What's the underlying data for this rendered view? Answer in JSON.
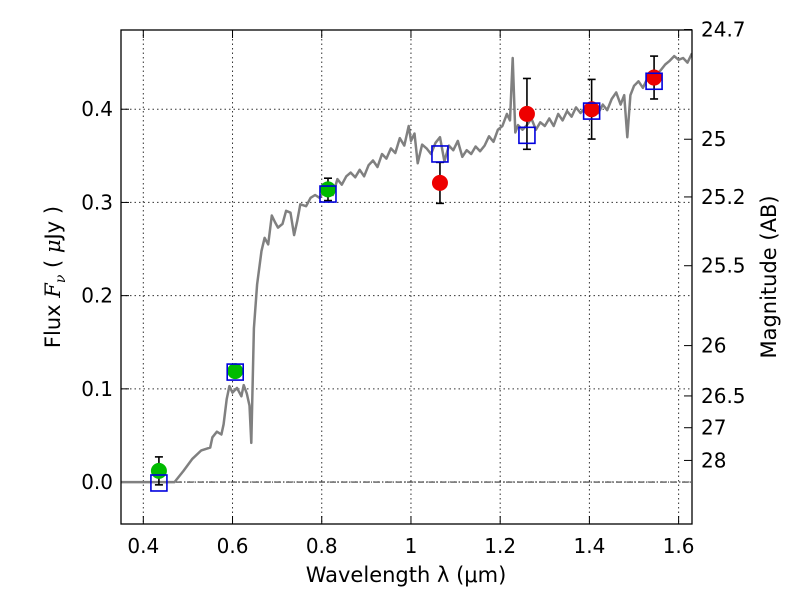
{
  "chart_data": {
    "type": "scatter",
    "xlabel": "Wavelength  λ (μm)",
    "ylabel": "Flux  F_ν  ( μJy )",
    "ylabel_right": "Magnitude (AB)",
    "xlim": [
      0.35,
      1.63
    ],
    "ylim": [
      -0.045,
      0.485
    ],
    "grid": true,
    "x_ticks": [
      0.4,
      0.6,
      0.8,
      1.0,
      1.2,
      1.4,
      1.6
    ],
    "x_tick_labels": [
      "0.4",
      "0.6",
      "0.8",
      "1",
      "1.2",
      "1.4",
      "1.6"
    ],
    "y_ticks": [
      0.0,
      0.1,
      0.2,
      0.3,
      0.4
    ],
    "y_tick_labels": [
      "0.0",
      "0.1",
      "0.2",
      "0.3",
      "0.4"
    ],
    "right_ticks": [
      {
        "label": "24.7",
        "flux": 0.4855
      },
      {
        "label": "25",
        "flux": 0.3678
      },
      {
        "label": "25.2",
        "flux": 0.3059
      },
      {
        "label": "25.5",
        "flux": 0.2321
      },
      {
        "label": "26",
        "flux": 0.1464
      },
      {
        "label": "26.5",
        "flux": 0.0924
      },
      {
        "label": "27",
        "flux": 0.0583
      },
      {
        "label": "28",
        "flux": 0.0232
      }
    ],
    "colors": {
      "model": "#808080",
      "optical_points": "#00bb00",
      "nir_points": "#ee0000",
      "model_boxes": "#0000dd",
      "errorbars": "#000000"
    },
    "series": [
      {
        "kind": "line",
        "points": [
          [
            0.35,
            0.0
          ],
          [
            0.47,
            0.0
          ],
          [
            0.49,
            0.012
          ],
          [
            0.51,
            0.025
          ],
          [
            0.53,
            0.034
          ],
          [
            0.55,
            0.037
          ],
          [
            0.555,
            0.048
          ],
          [
            0.565,
            0.054
          ],
          [
            0.575,
            0.051
          ],
          [
            0.58,
            0.062
          ],
          [
            0.587,
            0.089
          ],
          [
            0.593,
            0.103
          ],
          [
            0.6,
            0.096
          ],
          [
            0.61,
            0.101
          ],
          [
            0.62,
            0.092
          ],
          [
            0.625,
            0.104
          ],
          [
            0.632,
            0.095
          ],
          [
            0.638,
            0.082
          ],
          [
            0.642,
            0.042
          ],
          [
            0.648,
            0.165
          ],
          [
            0.655,
            0.212
          ],
          [
            0.665,
            0.248
          ],
          [
            0.672,
            0.262
          ],
          [
            0.68,
            0.255
          ],
          [
            0.688,
            0.286
          ],
          [
            0.695,
            0.279
          ],
          [
            0.702,
            0.273
          ],
          [
            0.712,
            0.277
          ],
          [
            0.72,
            0.291
          ],
          [
            0.73,
            0.289
          ],
          [
            0.738,
            0.265
          ],
          [
            0.745,
            0.28
          ],
          [
            0.752,
            0.298
          ],
          [
            0.765,
            0.296
          ],
          [
            0.775,
            0.305
          ],
          [
            0.785,
            0.308
          ],
          [
            0.795,
            0.305
          ],
          [
            0.805,
            0.312
          ],
          [
            0.815,
            0.318
          ],
          [
            0.825,
            0.308
          ],
          [
            0.835,
            0.325
          ],
          [
            0.845,
            0.319
          ],
          [
            0.855,
            0.328
          ],
          [
            0.865,
            0.332
          ],
          [
            0.875,
            0.327
          ],
          [
            0.885,
            0.335
          ],
          [
            0.895,
            0.328
          ],
          [
            0.905,
            0.34
          ],
          [
            0.915,
            0.345
          ],
          [
            0.925,
            0.338
          ],
          [
            0.935,
            0.352
          ],
          [
            0.945,
            0.347
          ],
          [
            0.955,
            0.358
          ],
          [
            0.965,
            0.353
          ],
          [
            0.975,
            0.369
          ],
          [
            0.985,
            0.361
          ],
          [
            0.995,
            0.382
          ],
          [
            1.0,
            0.366
          ],
          [
            1.008,
            0.374
          ],
          [
            1.015,
            0.342
          ],
          [
            1.025,
            0.362
          ],
          [
            1.035,
            0.358
          ],
          [
            1.045,
            0.352
          ],
          [
            1.055,
            0.364
          ],
          [
            1.065,
            0.37
          ],
          [
            1.075,
            0.344
          ],
          [
            1.085,
            0.361
          ],
          [
            1.095,
            0.356
          ],
          [
            1.105,
            0.366
          ],
          [
            1.115,
            0.349
          ],
          [
            1.125,
            0.356
          ],
          [
            1.135,
            0.352
          ],
          [
            1.145,
            0.36
          ],
          [
            1.155,
            0.355
          ],
          [
            1.165,
            0.361
          ],
          [
            1.175,
            0.371
          ],
          [
            1.185,
            0.365
          ],
          [
            1.195,
            0.378
          ],
          [
            1.205,
            0.382
          ],
          [
            1.215,
            0.395
          ],
          [
            1.222,
            0.388
          ],
          [
            1.228,
            0.455
          ],
          [
            1.234,
            0.375
          ],
          [
            1.24,
            0.383
          ],
          [
            1.25,
            0.378
          ],
          [
            1.26,
            0.383
          ],
          [
            1.27,
            0.39
          ],
          [
            1.28,
            0.378
          ],
          [
            1.29,
            0.386
          ],
          [
            1.3,
            0.382
          ],
          [
            1.31,
            0.39
          ],
          [
            1.32,
            0.382
          ],
          [
            1.33,
            0.395
          ],
          [
            1.34,
            0.388
          ],
          [
            1.35,
            0.398
          ],
          [
            1.36,
            0.392
          ],
          [
            1.37,
            0.402
          ],
          [
            1.38,
            0.396
          ],
          [
            1.39,
            0.401
          ],
          [
            1.4,
            0.394
          ],
          [
            1.41,
            0.403
          ],
          [
            1.42,
            0.396
          ],
          [
            1.43,
            0.405
          ],
          [
            1.44,
            0.399
          ],
          [
            1.45,
            0.411
          ],
          [
            1.46,
            0.418
          ],
          [
            1.47,
            0.405
          ],
          [
            1.478,
            0.415
          ],
          [
            1.485,
            0.37
          ],
          [
            1.492,
            0.415
          ],
          [
            1.5,
            0.425
          ],
          [
            1.51,
            0.43
          ],
          [
            1.52,
            0.423
          ],
          [
            1.53,
            0.433
          ],
          [
            1.54,
            0.428
          ],
          [
            1.55,
            0.437
          ],
          [
            1.56,
            0.442
          ],
          [
            1.57,
            0.448
          ],
          [
            1.58,
            0.452
          ],
          [
            1.59,
            0.457
          ],
          [
            1.6,
            0.453
          ],
          [
            1.61,
            0.455
          ],
          [
            1.62,
            0.45
          ],
          [
            1.63,
            0.46
          ]
        ]
      },
      {
        "kind": "points",
        "points": [
          {
            "x": 0.435,
            "y": 0.012,
            "yerr": 0.015
          },
          {
            "x": 0.606,
            "y": 0.119,
            "yerr": 0.0
          },
          {
            "x": 0.814,
            "y": 0.314,
            "yerr": 0.012
          }
        ]
      },
      {
        "kind": "points",
        "points": [
          {
            "x": 1.065,
            "y": 0.321,
            "yerr": 0.022
          },
          {
            "x": 1.26,
            "y": 0.395,
            "yerr": 0.038
          },
          {
            "x": 1.405,
            "y": 0.4,
            "yerr": 0.032
          },
          {
            "x": 1.545,
            "y": 0.434,
            "yerr": 0.023
          }
        ]
      },
      {
        "kind": "boxes",
        "points": [
          {
            "x": 0.435,
            "y": -0.001
          },
          {
            "x": 0.606,
            "y": 0.118
          },
          {
            "x": 0.814,
            "y": 0.309
          },
          {
            "x": 1.065,
            "y": 0.352
          },
          {
            "x": 1.26,
            "y": 0.372
          },
          {
            "x": 1.405,
            "y": 0.398
          },
          {
            "x": 1.545,
            "y": 0.43
          }
        ]
      }
    ]
  }
}
